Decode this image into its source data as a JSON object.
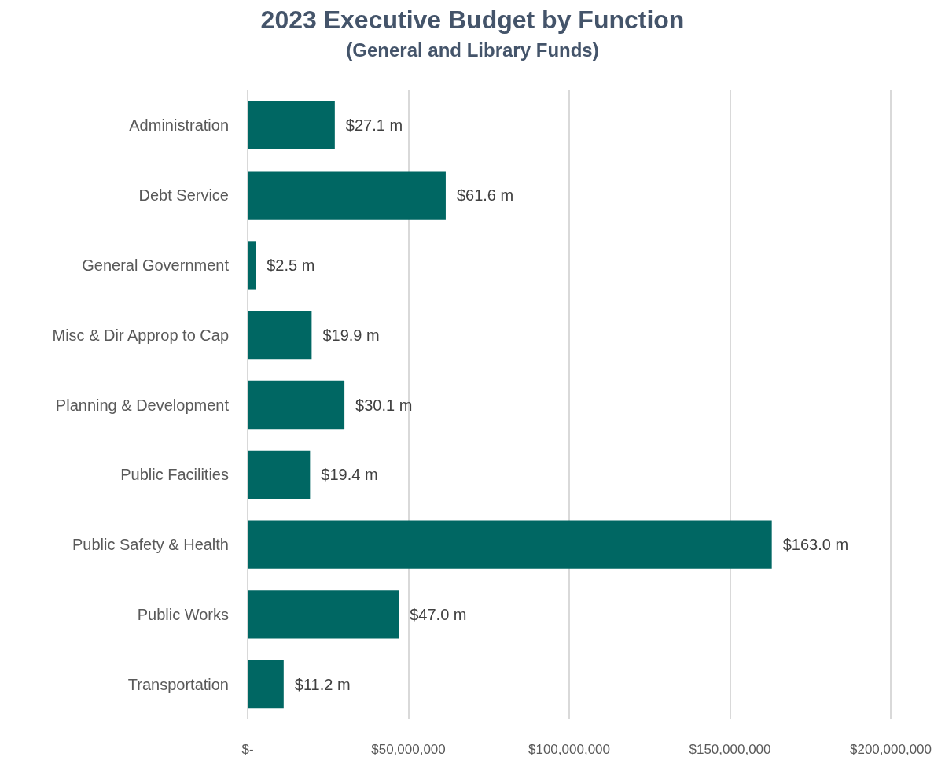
{
  "chart_data": {
    "type": "bar",
    "orientation": "horizontal",
    "title": "2023 Executive Budget by Function",
    "subtitle": "(General and Library Funds)",
    "categories": [
      "Administration",
      "Debt Service",
      "General Government",
      "Misc & Dir Approp to Cap",
      "Planning & Development",
      "Public Facilities",
      "Public Safety & Health",
      "Public Works",
      "Transportation"
    ],
    "values": [
      27100000,
      61600000,
      2500000,
      19900000,
      30100000,
      19400000,
      163000000,
      47000000,
      11200000
    ],
    "value_labels": [
      "$27.1 m",
      "$61.6 m",
      "$2.5 m",
      "$19.9 m",
      "$30.1 m",
      "$19.4 m",
      "$163.0 m",
      "$47.0 m",
      "$11.2 m"
    ],
    "color": "#006763",
    "xlim": [
      0,
      200000000
    ],
    "xticks": [
      {
        "value": 0,
        "label": "$-"
      },
      {
        "value": 50000000,
        "label": "$50,000,000"
      },
      {
        "value": 100000000,
        "label": "$100,000,000"
      },
      {
        "value": 150000000,
        "label": "$150,000,000"
      },
      {
        "value": 200000000,
        "label": "$200,000,000"
      }
    ],
    "grid": "x"
  }
}
